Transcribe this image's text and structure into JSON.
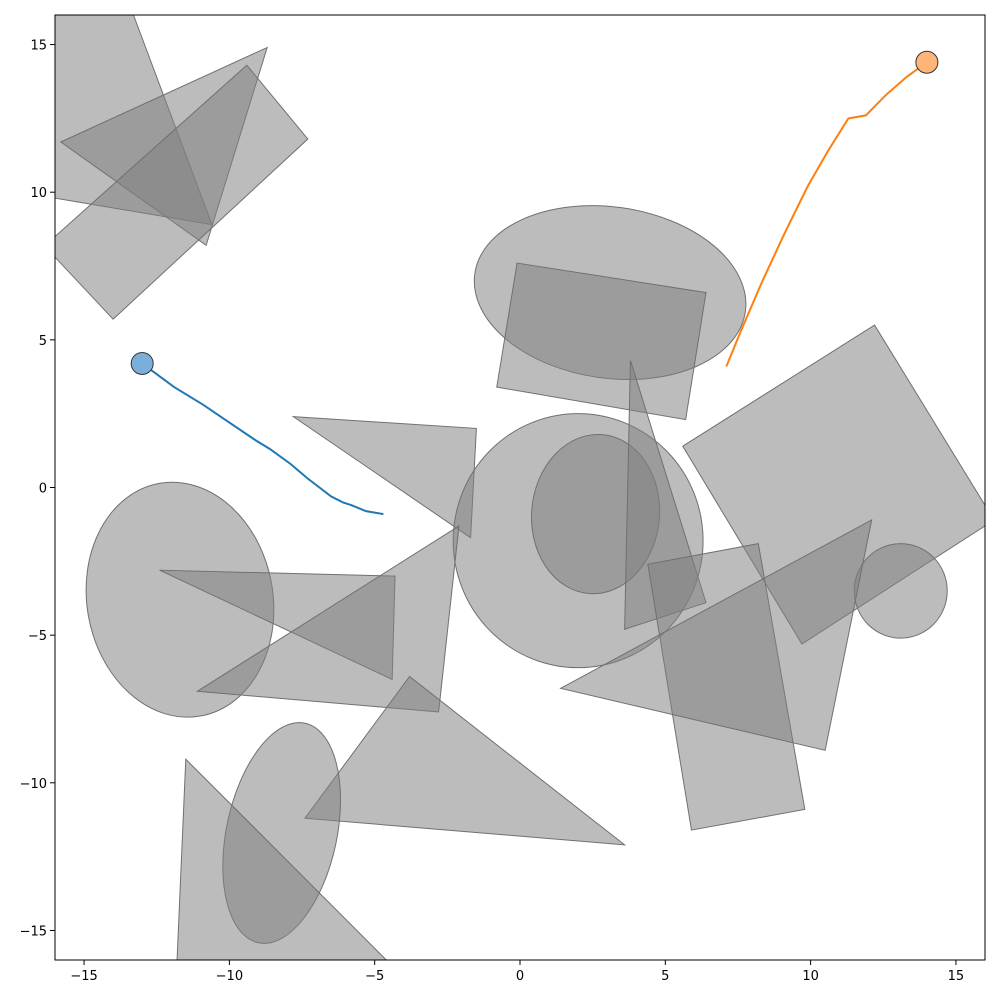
{
  "chart_data": {
    "type": "scatter",
    "title": "",
    "xlabel": "",
    "ylabel": "",
    "xlim": [
      -16,
      16
    ],
    "ylim": [
      -16,
      16
    ],
    "grid": false,
    "legend": "none",
    "x_ticks": [
      -15,
      -10,
      -5,
      0,
      5,
      10,
      15
    ],
    "y_ticks": [
      -15,
      -10,
      -5,
      0,
      5,
      10,
      15
    ],
    "x_tick_labels": [
      "−15",
      "−10",
      "−5",
      "0",
      "5",
      "10",
      "15"
    ],
    "y_tick_labels": [
      "−15",
      "−10",
      "−5",
      "0",
      "5",
      "10",
      "15"
    ],
    "obstacle_style": {
      "fill": "#808080",
      "fill_opacity": 0.53,
      "stroke": "#707070"
    },
    "obstacles": [
      {
        "kind": "polygon",
        "points": [
          [
            -16,
            16
          ],
          [
            -13.3,
            16
          ],
          [
            -10.6,
            8.9
          ],
          [
            -16,
            9.8
          ]
        ]
      },
      {
        "kind": "polygon",
        "points": [
          [
            -15.8,
            11.7
          ],
          [
            -8.7,
            14.9
          ],
          [
            -10.8,
            8.2
          ]
        ]
      },
      {
        "kind": "polygon",
        "points": [
          [
            -16,
            8.5
          ],
          [
            -9.4,
            14.3
          ],
          [
            -7.3,
            11.8
          ],
          [
            -14,
            5.7
          ],
          [
            -16,
            7.8
          ]
        ]
      },
      {
        "kind": "ellipse",
        "cx": 3.1,
        "cy": 6.6,
        "rx": 4.7,
        "ry": 2.9,
        "angle": -8
      },
      {
        "kind": "polygon",
        "points": [
          [
            -0.1,
            7.6
          ],
          [
            6.4,
            6.6
          ],
          [
            5.7,
            2.3
          ],
          [
            -0.8,
            3.4
          ]
        ]
      },
      {
        "kind": "polygon",
        "points": [
          [
            5.6,
            1.4
          ],
          [
            12.2,
            5.5
          ],
          [
            16,
            -0.6
          ],
          [
            16,
            -1.3
          ],
          [
            9.7,
            -5.3
          ]
        ]
      },
      {
        "kind": "polygon",
        "points": [
          [
            -7.8,
            2.4
          ],
          [
            -1.5,
            2.0
          ],
          [
            -1.7,
            -1.7
          ]
        ]
      },
      {
        "kind": "ellipse",
        "cx": 2.0,
        "cy": -1.8,
        "rx": 4.3,
        "ry": 4.3,
        "angle": 0
      },
      {
        "kind": "ellipse",
        "cx": 2.6,
        "cy": -0.9,
        "rx": 2.2,
        "ry": 2.7,
        "angle": -5
      },
      {
        "kind": "polygon",
        "points": [
          [
            3.8,
            4.3
          ],
          [
            3.6,
            -4.8
          ],
          [
            6.4,
            -3.9
          ]
        ]
      },
      {
        "kind": "ellipse",
        "cx": 13.1,
        "cy": -3.5,
        "rx": 1.6,
        "ry": 1.6,
        "angle": 0
      },
      {
        "kind": "ellipse",
        "cx": -11.7,
        "cy": -3.8,
        "rx": 3.2,
        "ry": 4.0,
        "angle": 10
      },
      {
        "kind": "polygon",
        "points": [
          [
            -12.4,
            -2.8
          ],
          [
            -4.3,
            -3.0
          ],
          [
            -4.4,
            -6.5
          ]
        ]
      },
      {
        "kind": "polygon",
        "points": [
          [
            -2.1,
            -1.3
          ],
          [
            -11.1,
            -6.9
          ],
          [
            -2.8,
            -7.6
          ]
        ]
      },
      {
        "kind": "polygon",
        "points": [
          [
            4.4,
            -2.6
          ],
          [
            8.2,
            -1.9
          ],
          [
            9.8,
            -10.9
          ],
          [
            5.9,
            -11.6
          ]
        ]
      },
      {
        "kind": "polygon",
        "points": [
          [
            12.1,
            -1.1
          ],
          [
            1.4,
            -6.8
          ],
          [
            10.5,
            -8.9
          ]
        ]
      },
      {
        "kind": "polygon",
        "points": [
          [
            -3.8,
            -6.4
          ],
          [
            -7.4,
            -11.2
          ],
          [
            3.6,
            -12.1
          ]
        ]
      },
      {
        "kind": "ellipse",
        "cx": -8.2,
        "cy": -11.7,
        "rx": 1.9,
        "ry": 3.8,
        "angle": -12
      },
      {
        "kind": "polygon",
        "points": [
          [
            -11.5,
            -9.2
          ],
          [
            -11.8,
            -16
          ],
          [
            -4.6,
            -16
          ]
        ]
      }
    ],
    "series": [
      {
        "color": "#1f77b4",
        "marker_color": "#7aaedb",
        "x": [
          -13.0,
          -11.9,
          -10.9,
          -10.0,
          -9.1,
          -8.6,
          -7.9,
          -7.3,
          -6.9,
          -6.5,
          -6.1,
          -5.8,
          -5.3,
          -4.7
        ],
        "y": [
          4.2,
          3.4,
          2.8,
          2.2,
          1.6,
          1.3,
          0.8,
          0.3,
          0.0,
          -0.3,
          -0.5,
          -0.6,
          -0.8,
          -0.9
        ],
        "marker_at": "start"
      },
      {
        "color": "#ff7f0e",
        "marker_color": "#ffb478",
        "x": [
          7.1,
          7.6,
          8.3,
          9.1,
          9.9,
          10.6,
          11.3,
          11.9,
          12.6,
          13.3,
          14.0
        ],
        "y": [
          4.1,
          5.3,
          6.9,
          8.6,
          10.2,
          11.4,
          12.5,
          12.6,
          13.3,
          13.9,
          14.4
        ],
        "marker_at": "end"
      }
    ]
  }
}
